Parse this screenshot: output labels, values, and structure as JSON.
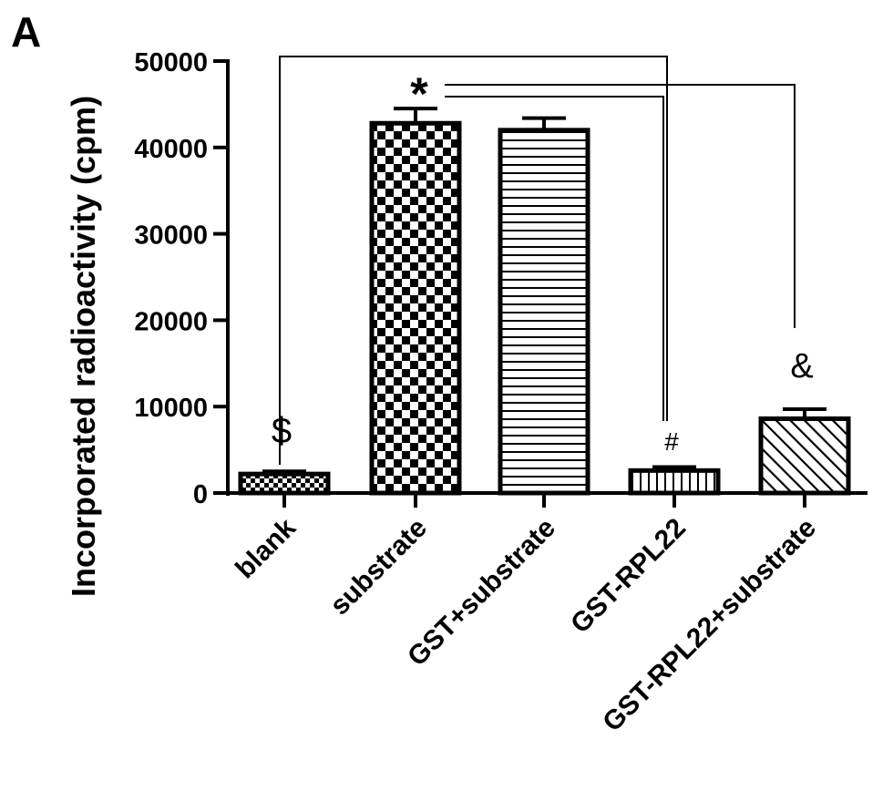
{
  "panel_label": "A",
  "chart_data": {
    "type": "bar",
    "ylabel": "Incorporated radioactivity  (cpm)",
    "xlabel": "",
    "ylim": [
      0,
      50000
    ],
    "yticks": [
      0,
      10000,
      20000,
      30000,
      40000,
      50000
    ],
    "ytick_labels": [
      "0",
      "10000",
      "20000",
      "30000",
      "40000",
      "50000"
    ],
    "categories": [
      "blank",
      "substrate",
      "GST+substrate",
      "GST-RPL22",
      "GST-RPL22+substrate"
    ],
    "values": [
      2200,
      42800,
      42000,
      2600,
      8600
    ],
    "errors": [
      300,
      1700,
      1400,
      400,
      1100
    ],
    "patterns": [
      "fine-checker",
      "checker",
      "horizontal-lines",
      "vertical-lines",
      "diagonal-lines"
    ],
    "annotations": [
      "$",
      "",
      "",
      "#",
      "&"
    ],
    "significance_marker": "*",
    "significance_links": [
      {
        "from": 1,
        "to": 0
      },
      {
        "from": 1,
        "to": 3
      },
      {
        "from": 1,
        "to": 4
      }
    ],
    "grid": false,
    "colors": {
      "bar_fill": "#ffffff",
      "pattern": "#000000",
      "stroke": "#000000"
    }
  }
}
